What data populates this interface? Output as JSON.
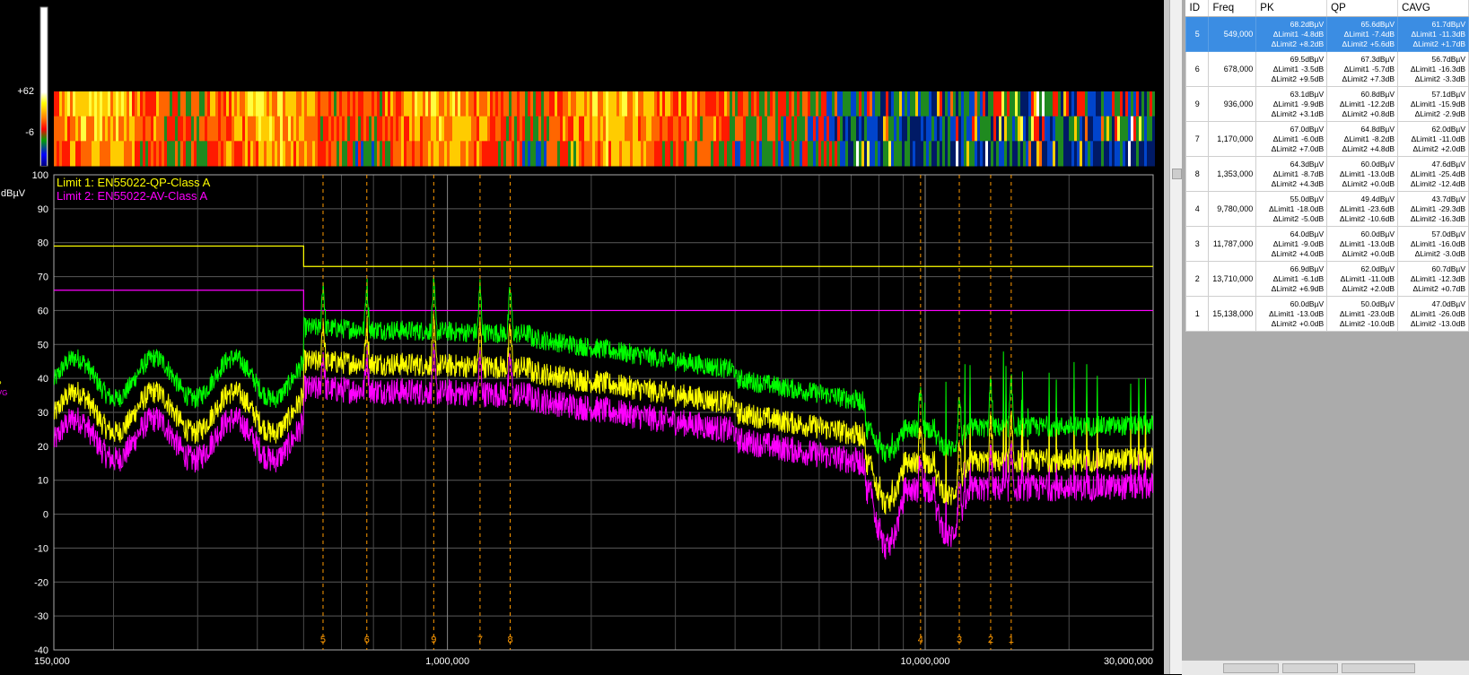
{
  "chart_data": {
    "type": "line",
    "x_scale": "log",
    "xlim": [
      150000,
      30000000
    ],
    "ylim": [
      -40,
      100
    ],
    "ylabel": "dBµV",
    "x_ticks": [
      "150,000",
      "1,000,000",
      "10,000,000",
      "30,000,000"
    ],
    "y_ticks": [
      "100",
      "90",
      "80",
      "70",
      "60",
      "50",
      "40",
      "30",
      "20",
      "10",
      "0",
      "-10",
      "-20",
      "-30",
      "-40"
    ],
    "grid": true,
    "series": [
      {
        "name": "PK",
        "color": "#00ff00"
      },
      {
        "name": "QP",
        "color": "#ffff00"
      },
      {
        "name": "AVG",
        "color": "#ff00ff"
      }
    ],
    "limits": [
      {
        "label": "Limit 1: EN55022-QP-Class A",
        "color": "#ffff00",
        "segments": [
          {
            "x": [
              150000,
              500000
            ],
            "y": 79
          },
          {
            "x": [
              500000,
              30000000
            ],
            "y": 73
          }
        ]
      },
      {
        "label": "Limit 2: EN55022-AV-Class A",
        "color": "#ff00ff",
        "segments": [
          {
            "x": [
              150000,
              500000
            ],
            "y": 66
          },
          {
            "x": [
              500000,
              30000000
            ],
            "y": 60
          }
        ]
      }
    ],
    "markers": [
      {
        "id": "5",
        "freq": 549000
      },
      {
        "id": "6",
        "freq": 678000
      },
      {
        "id": "9",
        "freq": 936000
      },
      {
        "id": "7",
        "freq": 1170000
      },
      {
        "id": "8",
        "freq": 1353000
      },
      {
        "id": "4",
        "freq": 9780000
      },
      {
        "id": "3",
        "freq": 11787000
      },
      {
        "id": "2",
        "freq": 13710000
      },
      {
        "id": "1",
        "freq": 15138000
      }
    ],
    "spectrogram": {
      "scale_top": "+62",
      "scale_bottom": "-6"
    }
  },
  "table": {
    "columns": [
      "ID",
      "Freq",
      "PK",
      "QP",
      "CAVG"
    ],
    "rows": [
      {
        "id": "5",
        "freq": "549,000",
        "selected": true,
        "pk": [
          "68.2dBµV",
          "ΔLimit1",
          "-4.8dB",
          "ΔLimit2",
          "+8.2dB"
        ],
        "qp": [
          "65.6dBµV",
          "ΔLimit1",
          "-7.4dB",
          "ΔLimit2",
          "+5.6dB"
        ],
        "cavg": [
          "61.7dBµV",
          "ΔLimit1",
          "-11.3dB",
          "ΔLimit2",
          "+1.7dB"
        ]
      },
      {
        "id": "6",
        "freq": "678,000",
        "pk": [
          "69.5dBµV",
          "ΔLimit1",
          "-3.5dB",
          "ΔLimit2",
          "+9.5dB"
        ],
        "qp": [
          "67.3dBµV",
          "ΔLimit1",
          "-5.7dB",
          "ΔLimit2",
          "+7.3dB"
        ],
        "cavg": [
          "56.7dBµV",
          "ΔLimit1",
          "-16.3dB",
          "ΔLimit2",
          "-3.3dB"
        ]
      },
      {
        "id": "9",
        "freq": "936,000",
        "pk": [
          "63.1dBµV",
          "ΔLimit1",
          "-9.9dB",
          "ΔLimit2",
          "+3.1dB"
        ],
        "qp": [
          "60.8dBµV",
          "ΔLimit1",
          "-12.2dB",
          "ΔLimit2",
          "+0.8dB"
        ],
        "cavg": [
          "57.1dBµV",
          "ΔLimit1",
          "-15.9dB",
          "ΔLimit2",
          "-2.9dB"
        ]
      },
      {
        "id": "7",
        "freq": "1,170,000",
        "pk": [
          "67.0dBµV",
          "ΔLimit1",
          "-6.0dB",
          "ΔLimit2",
          "+7.0dB"
        ],
        "qp": [
          "64.8dBµV",
          "ΔLimit1",
          "-8.2dB",
          "ΔLimit2",
          "+4.8dB"
        ],
        "cavg": [
          "62.0dBµV",
          "ΔLimit1",
          "-11.0dB",
          "ΔLimit2",
          "+2.0dB"
        ]
      },
      {
        "id": "8",
        "freq": "1,353,000",
        "pk": [
          "64.3dBµV",
          "ΔLimit1",
          "-8.7dB",
          "ΔLimit2",
          "+4.3dB"
        ],
        "qp": [
          "60.0dBµV",
          "ΔLimit1",
          "-13.0dB",
          "ΔLimit2",
          "+0.0dB"
        ],
        "cavg": [
          "47.6dBµV",
          "ΔLimit1",
          "-25.4dB",
          "ΔLimit2",
          "-12.4dB"
        ]
      },
      {
        "id": "4",
        "freq": "9,780,000",
        "pk": [
          "55.0dBµV",
          "ΔLimit1",
          "-18.0dB",
          "ΔLimit2",
          "-5.0dB"
        ],
        "qp": [
          "49.4dBµV",
          "ΔLimit1",
          "-23.6dB",
          "ΔLimit2",
          "-10.6dB"
        ],
        "cavg": [
          "43.7dBµV",
          "ΔLimit1",
          "-29.3dB",
          "ΔLimit2",
          "-16.3dB"
        ]
      },
      {
        "id": "3",
        "freq": "11,787,000",
        "pk": [
          "64.0dBµV",
          "ΔLimit1",
          "-9.0dB",
          "ΔLimit2",
          "+4.0dB"
        ],
        "qp": [
          "60.0dBµV",
          "ΔLimit1",
          "-13.0dB",
          "ΔLimit2",
          "+0.0dB"
        ],
        "cavg": [
          "57.0dBµV",
          "ΔLimit1",
          "-16.0dB",
          "ΔLimit2",
          "-3.0dB"
        ]
      },
      {
        "id": "2",
        "freq": "13,710,000",
        "pk": [
          "66.9dBµV",
          "ΔLimit1",
          "-6.1dB",
          "ΔLimit2",
          "+6.9dB"
        ],
        "qp": [
          "62.0dBµV",
          "ΔLimit1",
          "-11.0dB",
          "ΔLimit2",
          "+2.0dB"
        ],
        "cavg": [
          "60.7dBµV",
          "ΔLimit1",
          "-12.3dB",
          "ΔLimit2",
          "+0.7dB"
        ]
      },
      {
        "id": "1",
        "freq": "15,138,000",
        "pk": [
          "60.0dBµV",
          "ΔLimit1",
          "-13.0dB",
          "ΔLimit2",
          "+0.0dB"
        ],
        "qp": [
          "50.0dBµV",
          "ΔLimit1",
          "-23.0dB",
          "ΔLimit2",
          "-10.0dB"
        ],
        "cavg": [
          "47.0dBµV",
          "ΔLimit1",
          "-26.0dB",
          "ΔLimit2",
          "-13.0dB"
        ]
      }
    ]
  }
}
